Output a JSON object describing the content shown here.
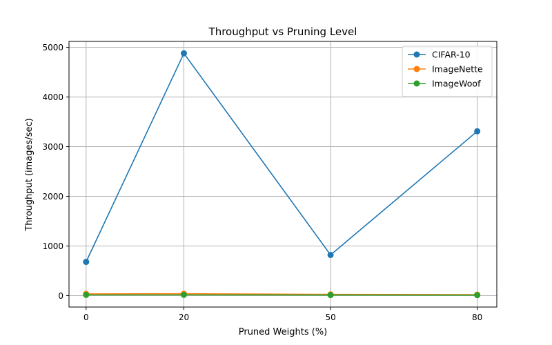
{
  "chart_data": {
    "type": "line",
    "title": "Throughput vs Pruning Level",
    "xlabel": "Pruned Weights (%)",
    "ylabel": "Throughput (images/sec)",
    "x": [
      0,
      20,
      50,
      80
    ],
    "xticks": [
      0,
      20,
      50,
      80
    ],
    "yticks": [
      0,
      1000,
      2000,
      3000,
      4000,
      5000
    ],
    "xlim": [
      -3.5,
      84
    ],
    "ylim": [
      -230,
      5120
    ],
    "grid": true,
    "legend_position": "top-right",
    "series": [
      {
        "name": "CIFAR-10",
        "color": "#1f77b4",
        "values": [
          680,
          4880,
          820,
          3310
        ]
      },
      {
        "name": "ImageNette",
        "color": "#ff7f0e",
        "values": [
          35,
          38,
          25,
          20
        ]
      },
      {
        "name": "ImageWoof",
        "color": "#2ca02c",
        "values": [
          15,
          15,
          12,
          10
        ]
      }
    ]
  }
}
